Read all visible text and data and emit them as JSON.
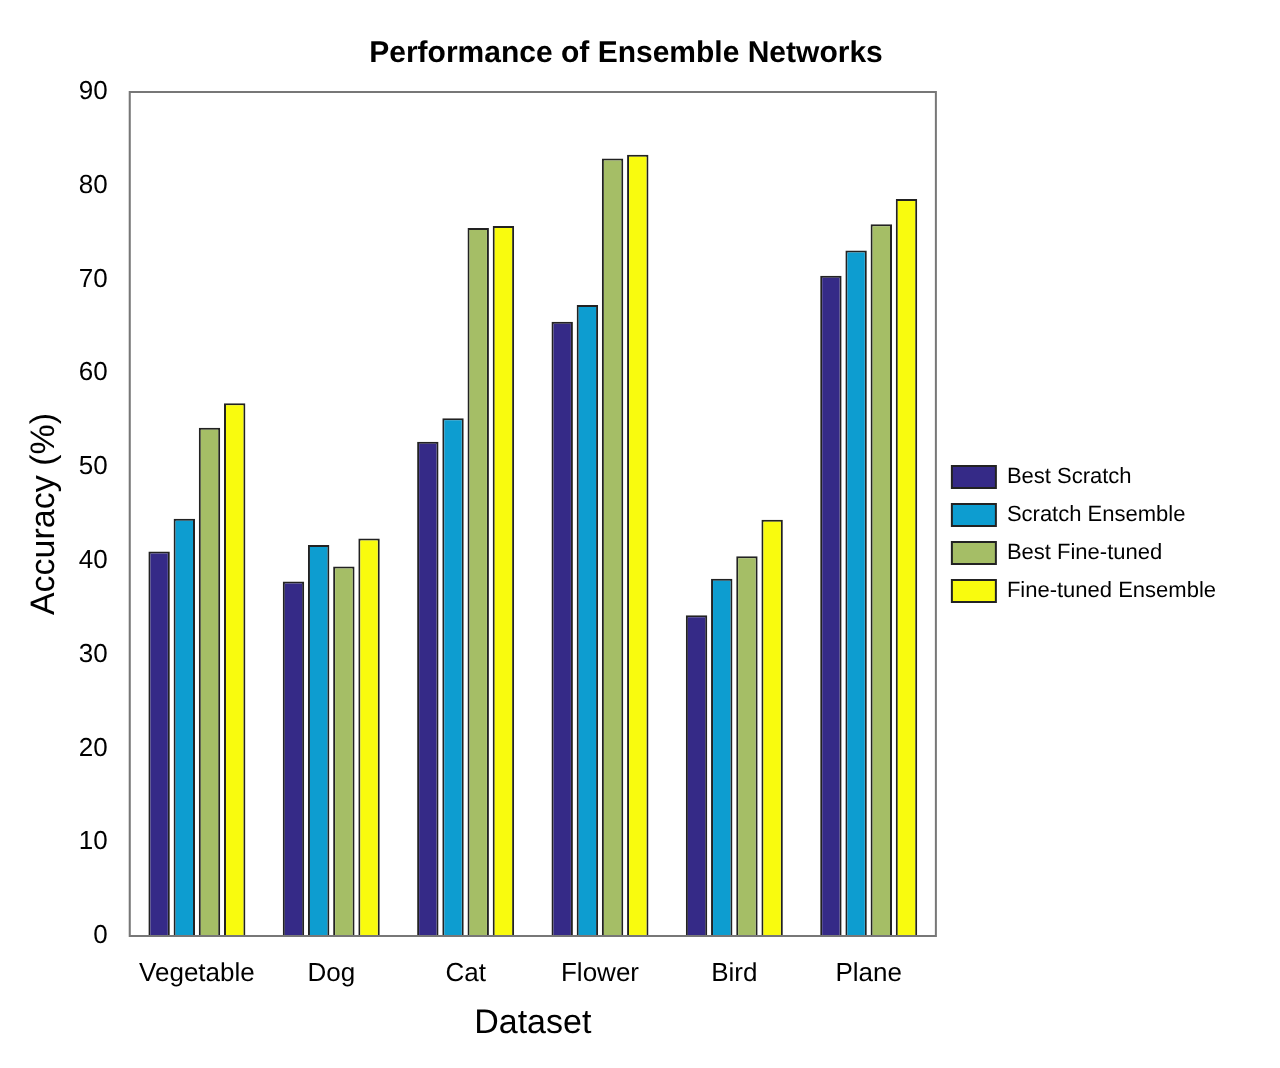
{
  "chart_data": {
    "type": "bar",
    "title": "Performance of Ensemble Networks",
    "xlabel": "Dataset",
    "ylabel": "Accuracy (%)",
    "categories": [
      "Vegetable",
      "Dog",
      "Cat",
      "Flower",
      "Bird",
      "Plane"
    ],
    "series": [
      {
        "name": "Best Scratch",
        "color": "#352a87",
        "values": [
          41,
          37.8,
          52.7,
          65.5,
          34.2,
          70.4
        ]
      },
      {
        "name": "Scratch Ensemble",
        "color": "#0d9dd0",
        "values": [
          44.5,
          41.7,
          55.2,
          67.3,
          38.1,
          73.1
        ]
      },
      {
        "name": "Best Fine-tuned",
        "color": "#a5be66",
        "values": [
          54.2,
          39.4,
          75.5,
          82.9,
          40.5,
          75.9
        ]
      },
      {
        "name": "Fine-tuned Ensemble",
        "color": "#f9fb0e",
        "values": [
          56.8,
          42.4,
          75.7,
          83.3,
          44.4,
          78.6
        ]
      }
    ],
    "ylim": [
      0,
      90
    ],
    "yticks": [
      0,
      10,
      20,
      30,
      40,
      50,
      60,
      70,
      80,
      90
    ],
    "grid": false,
    "legend": "right"
  }
}
